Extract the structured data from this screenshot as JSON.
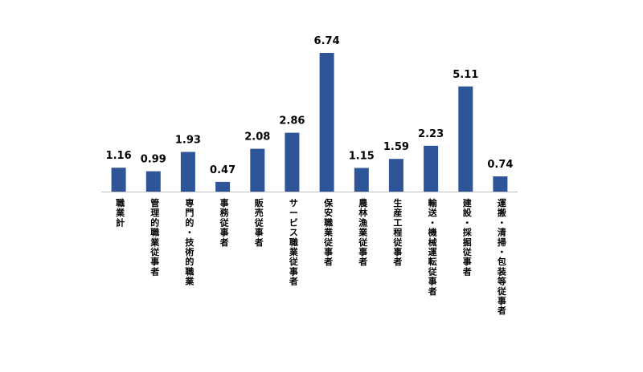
{
  "chart_data": {
    "type": "bar",
    "categories": [
      "職業計",
      "管理的職業従事者",
      "専門的・技術的職業",
      "事務従事者",
      "販売従事者",
      "サービス職業従事者",
      "保安職業従事者",
      "農林漁業従事者",
      "生産工程従事者",
      "輸送・機械運転従事者",
      "建設・採掘従事者",
      "運搬・清掃・包装等従事者"
    ],
    "values": [
      1.16,
      0.99,
      1.93,
      0.47,
      2.08,
      2.86,
      6.74,
      1.15,
      1.59,
      2.23,
      5.11,
      0.74
    ],
    "labels": [
      "1.16",
      "0.99",
      "1.93",
      "0.47",
      "2.08",
      "2.86",
      "6.74",
      "1.15",
      "1.59",
      "2.23",
      "5.11",
      "0.74"
    ],
    "title": "",
    "xlabel": "",
    "ylabel": "",
    "ylim": [
      0,
      6.74
    ],
    "grid": false,
    "legend": "none",
    "bar_color": "#2e5597",
    "axis_color": "#bfbfbf"
  }
}
